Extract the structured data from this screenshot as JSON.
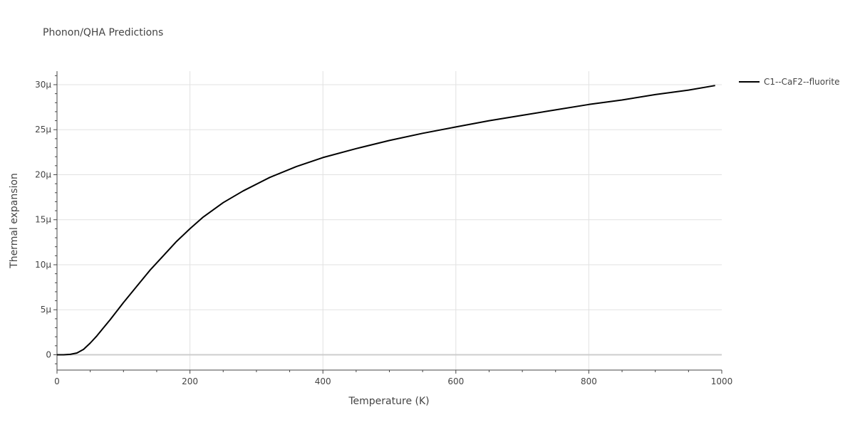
{
  "chart_data": {
    "type": "line",
    "title": "Phonon/QHA Predictions",
    "xlabel": "Temperature (K)",
    "ylabel": "Thermal expansion",
    "xlim": [
      0,
      1000
    ],
    "ylim": [
      -1.7e-06,
      3.15e-05
    ],
    "x_ticks": [
      0,
      200,
      400,
      600,
      800,
      1000
    ],
    "x_tick_labels": [
      "0",
      "200",
      "400",
      "600",
      "800",
      "1000"
    ],
    "y_ticks": [
      0,
      5e-06,
      1e-05,
      1.5e-05,
      2e-05,
      2.5e-05,
      3e-05
    ],
    "y_tick_labels": [
      "0",
      "5μ",
      "10μ",
      "15μ",
      "20μ",
      "25μ",
      "30μ"
    ],
    "grid": true,
    "legend_position": "top-right-outside",
    "series": [
      {
        "name": "C1--CaF2--fluorite",
        "color": "#000000",
        "x": [
          0,
          10,
          20,
          30,
          40,
          50,
          60,
          70,
          80,
          100,
          120,
          140,
          160,
          180,
          200,
          220,
          250,
          280,
          320,
          360,
          400,
          450,
          500,
          550,
          600,
          650,
          700,
          750,
          800,
          850,
          900,
          950,
          990
        ],
        "y": [
          0,
          0.0,
          5e-08,
          2e-07,
          6e-07,
          1.3e-06,
          2.1e-06,
          3e-06,
          3.9e-06,
          5.8e-06,
          7.6e-06,
          9.4e-06,
          1.1e-05,
          1.26e-05,
          1.4e-05,
          1.53e-05,
          1.69e-05,
          1.82e-05,
          1.97e-05,
          2.09e-05,
          2.19e-05,
          2.29e-05,
          2.38e-05,
          2.46e-05,
          2.53e-05,
          2.6e-05,
          2.66e-05,
          2.72e-05,
          2.78e-05,
          2.83e-05,
          2.89e-05,
          2.94e-05,
          2.99e-05
        ]
      }
    ]
  }
}
